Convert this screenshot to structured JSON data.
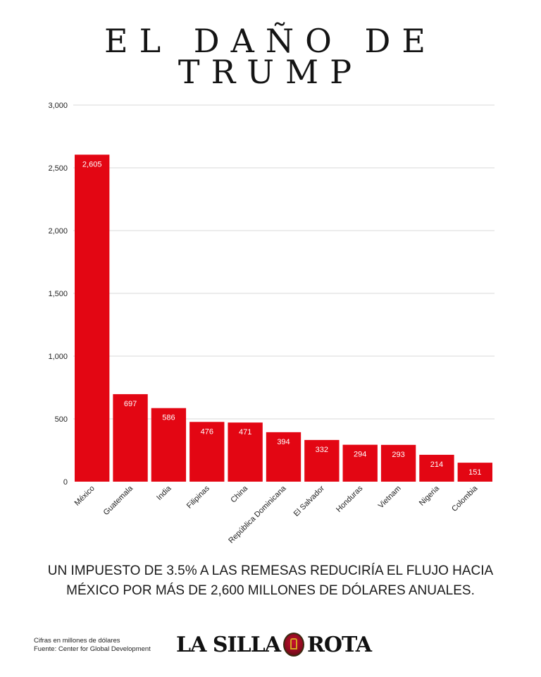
{
  "title_line1": "EL DAÑO DE",
  "title_line2": "TRUMP",
  "headline": "UN IMPUESTO DE 3.5% A LAS REMESAS REDUCIRÍA EL FLUJO HACIA MÉXICO POR MÁS DE 2,600 MILLONES DE DÓLARES ANUALES.",
  "footnote_units": "Cifras en millones de dólares",
  "footnote_source": "Fuente: Center for Global Development",
  "logo": {
    "left": "LA SILLA",
    "right": "ROTA"
  },
  "colors": {
    "bar": "#e30613",
    "grid": "#d9d9d9",
    "text": "#1a1a1a"
  },
  "chart_data": {
    "type": "bar",
    "title": "EL DAÑO DE TRUMP",
    "categories": [
      "México",
      "Guatemala",
      "India",
      "Filipinas",
      "China",
      "República Dominicana",
      "El Salvador",
      "Honduras",
      "Vietnam",
      "Nigeria",
      "Colombia"
    ],
    "values": [
      2605,
      697,
      586,
      476,
      471,
      394,
      332,
      294,
      293,
      214,
      151
    ],
    "value_labels": [
      "2,605",
      "697",
      "586",
      "476",
      "471",
      "394",
      "332",
      "294",
      "293",
      "214",
      "151"
    ],
    "yticks": [
      0,
      500,
      1000,
      1500,
      2000,
      2500,
      3000
    ],
    "ytick_labels": [
      "0",
      "500",
      "1,000",
      "1,500",
      "2,000",
      "2,500",
      "3,000"
    ],
    "ylim": [
      0,
      3000
    ],
    "grid": true,
    "xlabel": "",
    "ylabel": ""
  }
}
